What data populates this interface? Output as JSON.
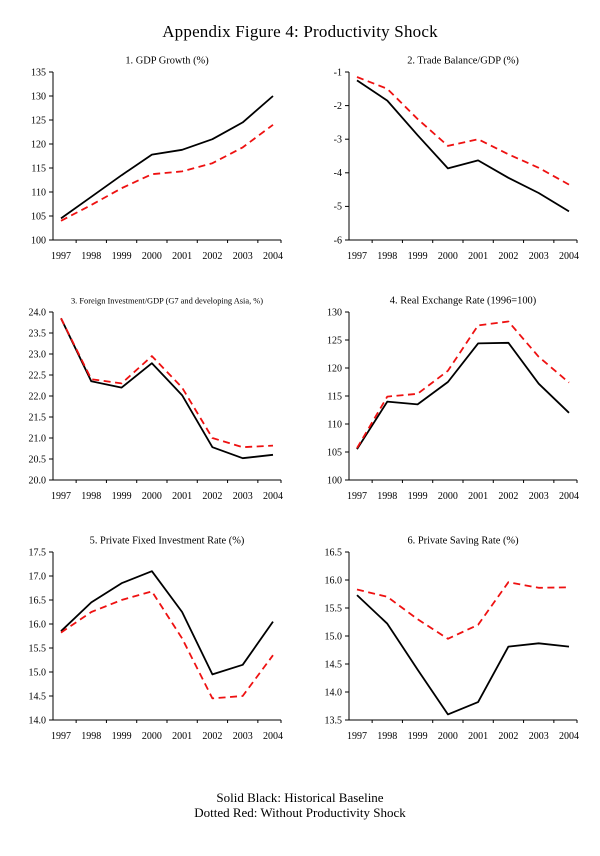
{
  "title": "Appendix Figure 4: Productivity Shock",
  "legend": {
    "line1": "Solid Black: Historical Baseline",
    "line2": "Dotted Red: Without Productivity Shock"
  },
  "colors": {
    "baseline_black": "#000000",
    "shock_red": "#ee1111"
  },
  "chart_data": [
    {
      "type": "line",
      "title": "1. GDP Growth (%)",
      "categories": [
        "1997",
        "1998",
        "1999",
        "2000",
        "2001",
        "2002",
        "2003",
        "2004"
      ],
      "ylim": [
        100,
        135
      ],
      "ytick_step": 5,
      "ydecimals": 0,
      "series": [
        {
          "name": "Historical Baseline",
          "style": "solid-black",
          "values": [
            104.5,
            109.0,
            113.5,
            117.8,
            118.8,
            121.0,
            124.5,
            130.0
          ]
        },
        {
          "name": "Without Productivity Shock",
          "style": "dashed-red",
          "values": [
            104.0,
            107.3,
            110.8,
            113.7,
            114.3,
            116.0,
            119.3,
            124.0
          ]
        }
      ]
    },
    {
      "type": "line",
      "title": "2. Trade Balance/GDP (%)",
      "categories": [
        "1997",
        "1998",
        "1999",
        "2000",
        "2001",
        "2002",
        "2003",
        "2004"
      ],
      "ylim": [
        -6,
        -1
      ],
      "ytick_step": 1,
      "ydecimals": 0,
      "series": [
        {
          "name": "Historical Baseline",
          "style": "solid-black",
          "values": [
            -1.25,
            -1.85,
            -2.88,
            -3.87,
            -3.63,
            -4.15,
            -4.6,
            -5.15
          ]
        },
        {
          "name": "Without Productivity Shock",
          "style": "dashed-red",
          "values": [
            -1.15,
            -1.5,
            -2.4,
            -3.2,
            -3.0,
            -3.45,
            -3.85,
            -4.35
          ]
        }
      ]
    },
    {
      "type": "line",
      "title": "3. Foreign Investment/GDP (G7 and developing Asia, %)",
      "categories": [
        "1997",
        "1998",
        "1999",
        "2000",
        "2001",
        "2002",
        "2003",
        "2004"
      ],
      "ylim": [
        20.0,
        24.0
      ],
      "ytick_step": 0.5,
      "ydecimals": 1,
      "series": [
        {
          "name": "Historical Baseline",
          "style": "solid-black",
          "values": [
            23.85,
            22.35,
            22.2,
            22.78,
            22.02,
            20.78,
            20.52,
            20.6
          ]
        },
        {
          "name": "Without Productivity Shock",
          "style": "dashed-red",
          "values": [
            23.85,
            22.4,
            22.3,
            22.95,
            22.2,
            21.0,
            20.78,
            20.82
          ]
        }
      ]
    },
    {
      "type": "line",
      "title": "4. Real Exchange Rate (1996=100)",
      "categories": [
        "1997",
        "1998",
        "1999",
        "2000",
        "2001",
        "2002",
        "2003",
        "2004"
      ],
      "ylim": [
        100,
        130
      ],
      "ytick_step": 5,
      "ydecimals": 0,
      "series": [
        {
          "name": "Historical Baseline",
          "style": "solid-black",
          "values": [
            105.5,
            114.0,
            113.5,
            117.5,
            124.4,
            124.5,
            117.2,
            112.0
          ]
        },
        {
          "name": "Without Productivity Shock",
          "style": "dashed-red",
          "values": [
            105.7,
            114.9,
            115.4,
            119.5,
            127.6,
            128.3,
            122.0,
            117.4
          ]
        }
      ]
    },
    {
      "type": "line",
      "title": "5. Private Fixed Investment Rate (%)",
      "categories": [
        "1997",
        "1998",
        "1999",
        "2000",
        "2001",
        "2002",
        "2003",
        "2004"
      ],
      "ylim": [
        14.0,
        17.5
      ],
      "ytick_step": 0.5,
      "ydecimals": 1,
      "series": [
        {
          "name": "Historical Baseline",
          "style": "solid-black",
          "values": [
            15.85,
            16.45,
            16.85,
            17.1,
            16.25,
            14.95,
            15.15,
            16.05
          ]
        },
        {
          "name": "Without Productivity Shock",
          "style": "dashed-red",
          "values": [
            15.82,
            16.25,
            16.5,
            16.68,
            15.7,
            14.45,
            14.5,
            15.35
          ]
        }
      ]
    },
    {
      "type": "line",
      "title": "6. Private Saving Rate (%)",
      "categories": [
        "1997",
        "1998",
        "1999",
        "2000",
        "2001",
        "2002",
        "2003",
        "2004"
      ],
      "ylim": [
        13.5,
        16.5
      ],
      "ytick_step": 0.5,
      "ydecimals": 1,
      "series": [
        {
          "name": "Historical Baseline",
          "style": "solid-black",
          "values": [
            15.73,
            15.22,
            14.4,
            13.6,
            13.82,
            14.81,
            14.87,
            14.81
          ]
        },
        {
          "name": "Without Productivity Shock",
          "style": "dashed-red",
          "values": [
            15.83,
            15.7,
            15.3,
            14.95,
            15.2,
            15.96,
            15.86,
            15.87
          ]
        }
      ]
    }
  ]
}
